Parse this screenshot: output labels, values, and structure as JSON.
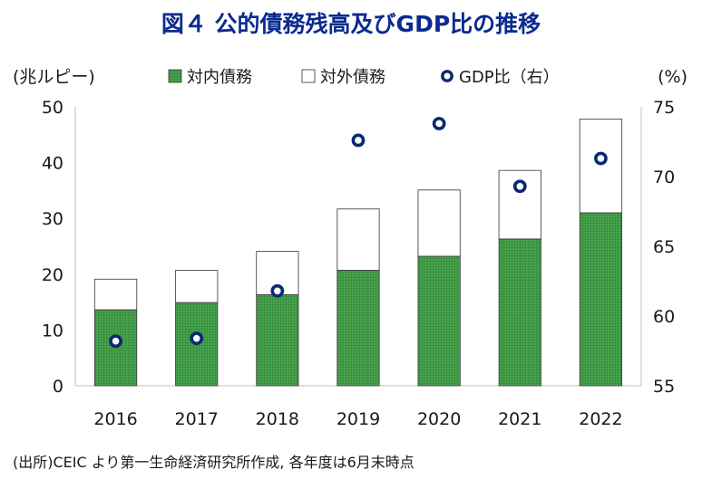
{
  "chart_data": {
    "type": "bar",
    "title": "図４ 公的債務残高及びGDP比の推移",
    "left_axis_unit": "(兆ルピー)",
    "right_axis_unit": "(%)",
    "categories": [
      "2016",
      "2017",
      "2018",
      "2019",
      "2020",
      "2021",
      "2022"
    ],
    "series": [
      {
        "name": "対内債務",
        "kind": "bar",
        "axis": "left",
        "color": "#3f9a45",
        "values": [
          13.6,
          14.9,
          16.3,
          20.7,
          23.2,
          26.3,
          31.0
        ]
      },
      {
        "name": "対外債務",
        "kind": "bar",
        "axis": "left",
        "color": "#ffffff",
        "values": [
          5.5,
          5.8,
          7.8,
          11.0,
          11.9,
          12.3,
          16.8
        ]
      },
      {
        "name": "GDP比（右）",
        "kind": "scatter",
        "axis": "right",
        "color": "#0a2a6e",
        "values": [
          58.2,
          58.4,
          61.8,
          72.6,
          73.8,
          69.3,
          71.3
        ]
      }
    ],
    "left_axis": {
      "min": 0,
      "max": 50,
      "ticks": [
        0,
        10,
        20,
        30,
        40,
        50
      ]
    },
    "right_axis": {
      "min": 55,
      "max": 75,
      "ticks": [
        55,
        60,
        65,
        70,
        75
      ]
    },
    "legend_position": "top",
    "grid": false,
    "source": "(出所)CEIC より第一生命経済研究所作成, 各年度は6月末時点"
  }
}
